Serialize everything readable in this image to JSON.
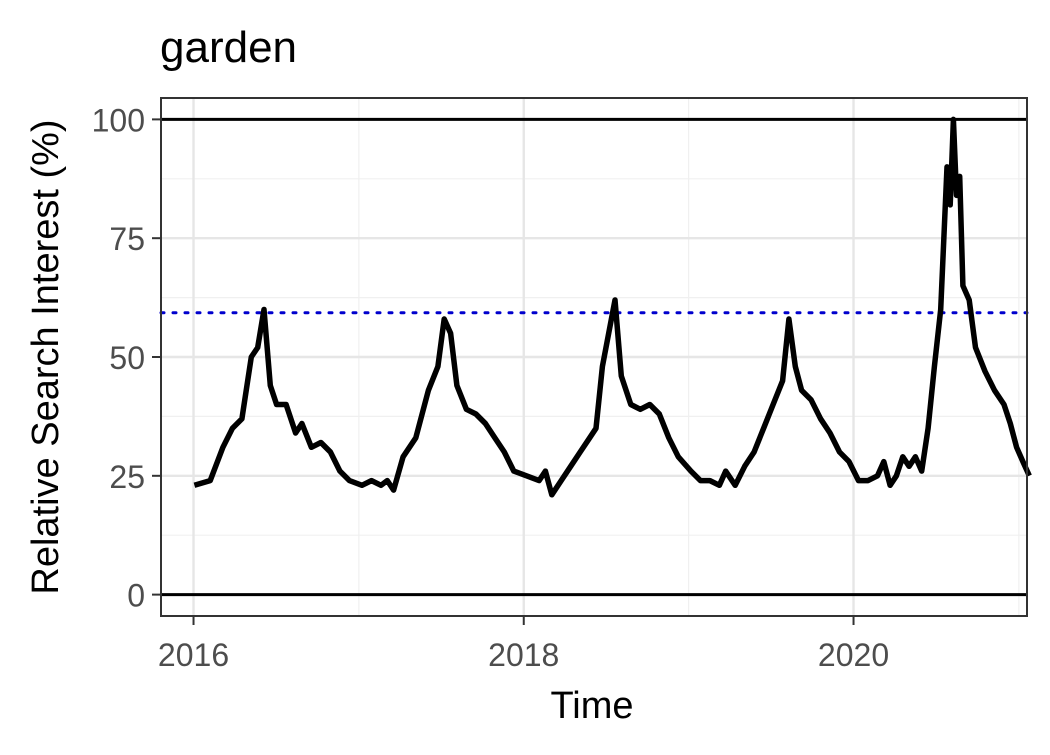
{
  "chart_data": {
    "type": "line",
    "title": "garden",
    "xlabel": "Time",
    "ylabel": "Relative Search Interest (%)",
    "xlim": [
      "2015-10-21",
      "2021-01-19"
    ],
    "ylim": [
      -4.5,
      104.5
    ],
    "xticks": [
      {
        "date": "2016-01-01",
        "label": "2016"
      },
      {
        "date": "2018-01-01",
        "label": "2018"
      },
      {
        "date": "2020-01-01",
        "label": "2020"
      }
    ],
    "xminor_gridlines": [
      "2017-01-01",
      "2019-01-01",
      "2021-01-01"
    ],
    "yticks": [
      0,
      25,
      50,
      75,
      100
    ],
    "yminor_gridlines": [
      12.5,
      37.5,
      62.5,
      87.5
    ],
    "grid": true,
    "hlines": [
      {
        "y": 0,
        "color": "#000000",
        "style": "solid"
      },
      {
        "y": 100,
        "color": "#000000",
        "style": "solid"
      },
      {
        "y": 59.3,
        "color": "#0000cd",
        "style": "dotted"
      }
    ],
    "series": [
      {
        "color": "#000000",
        "points": [
          [
            "2016-01-03",
            23
          ],
          [
            "2016-02-07",
            24
          ],
          [
            "2016-03-06",
            31
          ],
          [
            "2016-03-27",
            35
          ],
          [
            "2016-04-17",
            37
          ],
          [
            "2016-05-08",
            50
          ],
          [
            "2016-05-22",
            52
          ],
          [
            "2016-06-05",
            60
          ],
          [
            "2016-06-19",
            44
          ],
          [
            "2016-07-03",
            40
          ],
          [
            "2016-07-24",
            40
          ],
          [
            "2016-08-14",
            34
          ],
          [
            "2016-08-28",
            36
          ],
          [
            "2016-09-18",
            31
          ],
          [
            "2016-10-09",
            32
          ],
          [
            "2016-10-30",
            30
          ],
          [
            "2016-11-20",
            26
          ],
          [
            "2016-12-11",
            24
          ],
          [
            "2017-01-08",
            23
          ],
          [
            "2017-01-29",
            24
          ],
          [
            "2017-02-19",
            23
          ],
          [
            "2017-03-05",
            24
          ],
          [
            "2017-03-19",
            22
          ],
          [
            "2017-04-09",
            29
          ],
          [
            "2017-05-07",
            33
          ],
          [
            "2017-06-04",
            43
          ],
          [
            "2017-06-25",
            48
          ],
          [
            "2017-07-09",
            58
          ],
          [
            "2017-07-23",
            55
          ],
          [
            "2017-08-06",
            44
          ],
          [
            "2017-08-27",
            39
          ],
          [
            "2017-09-17",
            38
          ],
          [
            "2017-10-08",
            36
          ],
          [
            "2017-10-29",
            33
          ],
          [
            "2017-11-19",
            30
          ],
          [
            "2017-12-10",
            26
          ],
          [
            "2018-01-07",
            25
          ],
          [
            "2018-02-04",
            24
          ],
          [
            "2018-02-18",
            26
          ],
          [
            "2018-03-04",
            21
          ],
          [
            "2018-03-25",
            24
          ],
          [
            "2018-04-15",
            27
          ],
          [
            "2018-05-06",
            30
          ],
          [
            "2018-05-27",
            33
          ],
          [
            "2018-06-10",
            35
          ],
          [
            "2018-06-24",
            48
          ],
          [
            "2018-07-08",
            55
          ],
          [
            "2018-07-22",
            62
          ],
          [
            "2018-08-05",
            46
          ],
          [
            "2018-08-26",
            40
          ],
          [
            "2018-09-16",
            39
          ],
          [
            "2018-10-07",
            40
          ],
          [
            "2018-10-28",
            38
          ],
          [
            "2018-11-18",
            33
          ],
          [
            "2018-12-09",
            29
          ],
          [
            "2019-01-06",
            26
          ],
          [
            "2019-01-27",
            24
          ],
          [
            "2019-02-17",
            24
          ],
          [
            "2019-03-10",
            23
          ],
          [
            "2019-03-24",
            26
          ],
          [
            "2019-04-14",
            23
          ],
          [
            "2019-05-05",
            27
          ],
          [
            "2019-05-26",
            30
          ],
          [
            "2019-06-16",
            35
          ],
          [
            "2019-07-07",
            40
          ],
          [
            "2019-07-28",
            45
          ],
          [
            "2019-08-11",
            58
          ],
          [
            "2019-08-25",
            48
          ],
          [
            "2019-09-08",
            43
          ],
          [
            "2019-09-29",
            41
          ],
          [
            "2019-10-20",
            37
          ],
          [
            "2019-11-10",
            34
          ],
          [
            "2019-12-01",
            30
          ],
          [
            "2019-12-22",
            28
          ],
          [
            "2020-01-12",
            24
          ],
          [
            "2020-02-02",
            24
          ],
          [
            "2020-02-23",
            25
          ],
          [
            "2020-03-08",
            28
          ],
          [
            "2020-03-22",
            23
          ],
          [
            "2020-04-05",
            25
          ],
          [
            "2020-04-19",
            29
          ],
          [
            "2020-05-03",
            27
          ],
          [
            "2020-05-17",
            29
          ],
          [
            "2020-05-31",
            26
          ],
          [
            "2020-06-14",
            35
          ],
          [
            "2020-06-28",
            48
          ],
          [
            "2020-07-12",
            60
          ],
          [
            "2020-07-26",
            90
          ],
          [
            "2020-08-02",
            82
          ],
          [
            "2020-08-09",
            100
          ],
          [
            "2020-08-16",
            84
          ],
          [
            "2020-08-23",
            88
          ],
          [
            "2020-08-30",
            65
          ],
          [
            "2020-09-13",
            62
          ],
          [
            "2020-09-27",
            52
          ],
          [
            "2020-10-18",
            47
          ],
          [
            "2020-11-08",
            43
          ],
          [
            "2020-11-29",
            40
          ],
          [
            "2020-12-13",
            36
          ],
          [
            "2020-12-27",
            31
          ],
          [
            "2021-01-10",
            28
          ],
          [
            "2021-01-24",
            25
          ]
        ]
      }
    ]
  }
}
